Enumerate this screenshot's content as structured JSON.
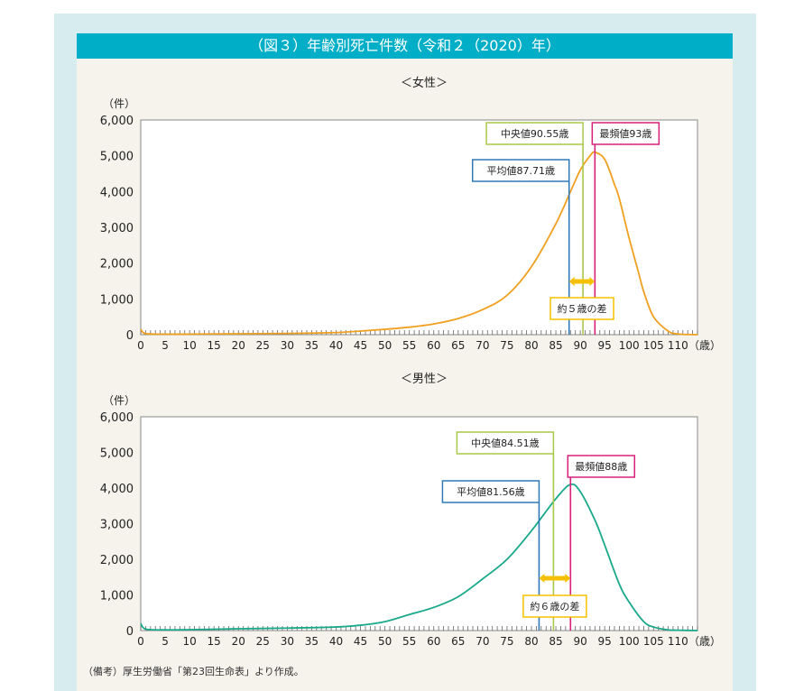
{
  "title": "（図３）年齢別死亡件数（令和２（2020）年）",
  "footnote": "（備考）厚生労働省「第23回生命表」より作成。",
  "colors": {
    "female": "#f0a020",
    "male": "#1aa88a",
    "mean": "#2f79b8",
    "median": "#a8c84a",
    "mode": "#d8207a",
    "arrow": "#f5c000"
  },
  "chart_data": [
    {
      "type": "line",
      "title": "＜女性＞",
      "ylabel": "（件）",
      "xlabel": "（歳）",
      "ylim": [
        0,
        6000
      ],
      "xlim": [
        0,
        114
      ],
      "yticks": [
        "0",
        "1,000",
        "2,000",
        "3,000",
        "4,000",
        "5,000",
        "6,000"
      ],
      "xticks": [
        "0",
        "5",
        "10",
        "15",
        "20",
        "25",
        "30",
        "35",
        "40",
        "45",
        "50",
        "55",
        "60",
        "65",
        "70",
        "75",
        "80",
        "85",
        "90",
        "95",
        "100",
        "105",
        "110"
      ],
      "x": [
        0,
        1,
        5,
        10,
        20,
        30,
        40,
        45,
        50,
        55,
        60,
        65,
        70,
        75,
        80,
        85,
        88,
        90,
        92,
        93,
        95,
        97,
        98,
        100,
        102,
        103,
        105,
        108,
        110,
        114
      ],
      "y": [
        150,
        30,
        15,
        15,
        25,
        35,
        60,
        100,
        150,
        210,
        300,
        450,
        700,
        1100,
        1900,
        3100,
        4000,
        4600,
        5000,
        5100,
        4900,
        4200,
        3800,
        2700,
        1700,
        1200,
        500,
        100,
        20,
        0
      ],
      "annotations": {
        "mean": {
          "label": "平均値87.71歳",
          "value": 87.71
        },
        "median": {
          "label": "中央値90.55歳",
          "value": 90.55
        },
        "mode": {
          "label": "最頻値93歳",
          "value": 93
        },
        "diff": "約５歳の差"
      }
    },
    {
      "type": "line",
      "title": "＜男性＞",
      "ylabel": "（件）",
      "xlabel": "（歳）",
      "ylim": [
        0,
        6000
      ],
      "xlim": [
        0,
        114
      ],
      "yticks": [
        "0",
        "1,000",
        "2,000",
        "3,000",
        "4,000",
        "5,000",
        "6,000"
      ],
      "xticks": [
        "0",
        "5",
        "10",
        "15",
        "20",
        "25",
        "30",
        "35",
        "40",
        "45",
        "50",
        "55",
        "60",
        "65",
        "70",
        "75",
        "80",
        "85",
        "90",
        "95",
        "100",
        "105",
        "110"
      ],
      "x": [
        0,
        1,
        5,
        10,
        20,
        30,
        40,
        45,
        50,
        55,
        60,
        65,
        70,
        75,
        80,
        85,
        88,
        90,
        93,
        95,
        98,
        100,
        103,
        105,
        108,
        110,
        114
      ],
      "y": [
        200,
        40,
        20,
        25,
        50,
        70,
        100,
        150,
        250,
        450,
        650,
        950,
        1450,
        2000,
        2800,
        3700,
        4100,
        3900,
        3100,
        2400,
        1300,
        800,
        250,
        100,
        20,
        10,
        0
      ],
      "annotations": {
        "mean": {
          "label": "平均値81.56歳",
          "value": 81.56
        },
        "median": {
          "label": "中央値84.51歳",
          "value": 84.51
        },
        "mode": {
          "label": "最頻値88歳",
          "value": 88
        },
        "diff": "約６歳の差"
      }
    }
  ]
}
